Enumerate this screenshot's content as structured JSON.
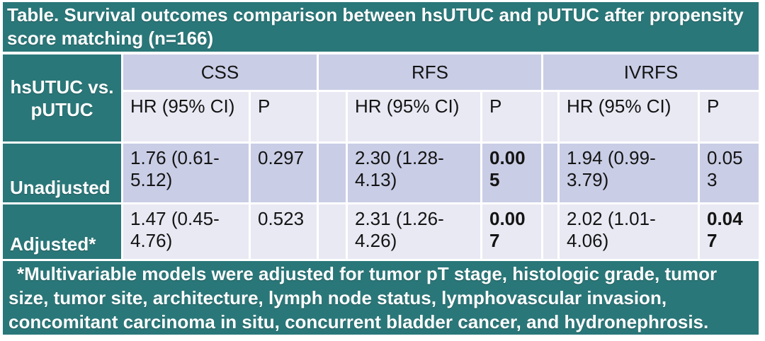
{
  "title": "Table. Survival outcomes comparison between hsUTUC and pUTUC after propensity score matching (n=166)",
  "colors": {
    "teal": "#2A7779",
    "band_dark": "#C9CDE5",
    "band_light": "#E8E9F3",
    "gridline": "#FFFFFF",
    "header_text": "#FFFFFF",
    "body_text": "#141414"
  },
  "chart_data": {
    "type": "table",
    "title": "Table. Survival outcomes comparison between hsUTUC and pUTUC after propensity score matching (n=166)",
    "corner_header": "hsUTUC vs. pUTUC",
    "column_groups": [
      "CSS",
      "RFS",
      "IVRFS"
    ],
    "sub_columns": [
      "HR (95% CI)",
      "P"
    ],
    "rows": [
      "Unadjusted",
      "Adjusted*"
    ],
    "values": [
      [
        "1.76 (0.61-5.12)",
        "0.297",
        "2.30 (1.28-4.13)",
        "0.005",
        "1.94 (0.99-3.79)",
        "0.053"
      ],
      [
        "1.47 (0.45-4.76)",
        "0.523",
        "2.31 (1.26-4.26)",
        "0.007",
        "2.02 (1.01-4.06)",
        "0.047"
      ]
    ]
  },
  "table": {
    "corner_header": "hsUTUC vs. pUTUC",
    "groups": {
      "css": "CSS",
      "rfs": "RFS",
      "ivrfs": "IVRFS"
    },
    "sub": {
      "hr": "HR (95% CI)",
      "p": "P"
    },
    "rows": [
      {
        "label": "Unadjusted",
        "css_hr": "1.76 (0.61-5.12)",
        "css_p": "0.297",
        "css_p_bold": false,
        "rfs_hr": "2.30 (1.28-4.13)",
        "rfs_p": "0.005",
        "rfs_p_bold": true,
        "ivrfs_hr": "1.94 (0.99-3.79)",
        "ivrfs_p": "0.053",
        "ivrfs_p_bold": false
      },
      {
        "label": "Adjusted*",
        "css_hr": "1.47 (0.45-4.76)",
        "css_p": "0.523",
        "css_p_bold": false,
        "rfs_hr": "2.31 (1.26-4.26)",
        "rfs_p": "0.007",
        "rfs_p_bold": true,
        "ivrfs_hr": "2.02 (1.01-4.06)",
        "ivrfs_p": "0.047",
        "ivrfs_p_bold": true
      }
    ]
  },
  "footnote": "*Multivariable models were adjusted for tumor pT stage, histologic grade, tumor size, tumor site, architecture, lymph node status, lymphovascular invasion, concomitant carcinoma in situ, concurrent bladder cancer, and hydronephrosis."
}
